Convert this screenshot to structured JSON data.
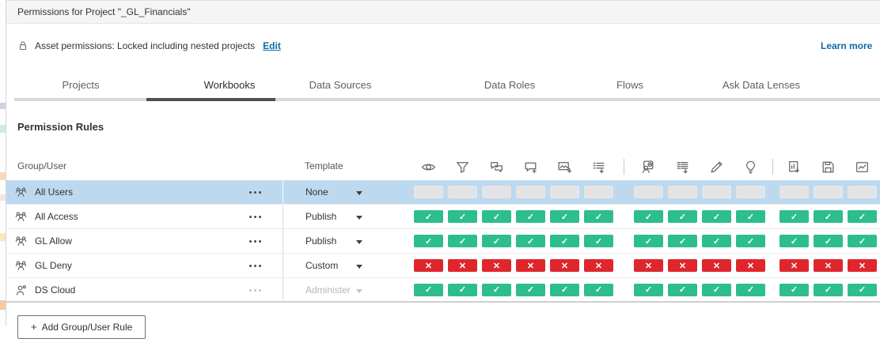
{
  "window": {
    "title": "Permissions for Project \"_GL_Financials\""
  },
  "asset_bar": {
    "text": "Asset permissions: Locked including nested projects",
    "edit_label": "Edit",
    "learn_more_label": "Learn more"
  },
  "tabs": [
    {
      "label": "Projects",
      "active": false
    },
    {
      "label": "Workbooks",
      "active": true
    },
    {
      "label": "Data Sources",
      "active": false
    },
    {
      "label": "Data Roles",
      "active": false
    },
    {
      "label": "Flows",
      "active": false
    },
    {
      "label": "Ask Data Lenses",
      "active": false
    }
  ],
  "permission_rules": {
    "title": "Permission Rules",
    "columns": {
      "group_user": "Group/User",
      "template": "Template"
    },
    "capability_groups": [
      [
        "eye-icon",
        "filter-icon",
        "view-comments-icon",
        "add-comments-icon",
        "download-image-icon",
        "download-summary-data-icon"
      ],
      [
        "share-customized-icon",
        "download-full-data-icon",
        "web-edit-icon",
        "explain-data-icon"
      ],
      [
        "download-workbook-icon",
        "save-icon",
        "metrics-icon"
      ]
    ],
    "cell_glyphs": {
      "allow": "✓",
      "deny": "✕",
      "none": ""
    },
    "rows": [
      {
        "group": "All Users",
        "member_icon": "group-icon",
        "template": "None",
        "cell_state": "none",
        "selected": true,
        "disabled": false
      },
      {
        "group": "All Access",
        "member_icon": "group-icon",
        "template": "Publish",
        "cell_state": "allow",
        "selected": false,
        "disabled": false
      },
      {
        "group": "GL Allow",
        "member_icon": "group-icon",
        "template": "Publish",
        "cell_state": "allow",
        "selected": false,
        "disabled": false
      },
      {
        "group": "GL Deny",
        "member_icon": "group-icon",
        "template": "Custom",
        "cell_state": "deny",
        "selected": false,
        "disabled": false
      },
      {
        "group": "DS Cloud",
        "member_icon": "user-icon",
        "template": "Administer",
        "cell_state": "allow",
        "selected": false,
        "disabled": true
      }
    ]
  },
  "add_rule_button": {
    "plus": "+",
    "label": "Add Group/User Rule"
  },
  "colors": {
    "allow_green": "#2ebd8d",
    "deny_red": "#e0262d",
    "none_gray": "#e4e4e7",
    "selected_row_blue": "#bcd9ef",
    "link_blue": "#0d6ba6",
    "active_tab_underline": "#4f4f4f"
  }
}
